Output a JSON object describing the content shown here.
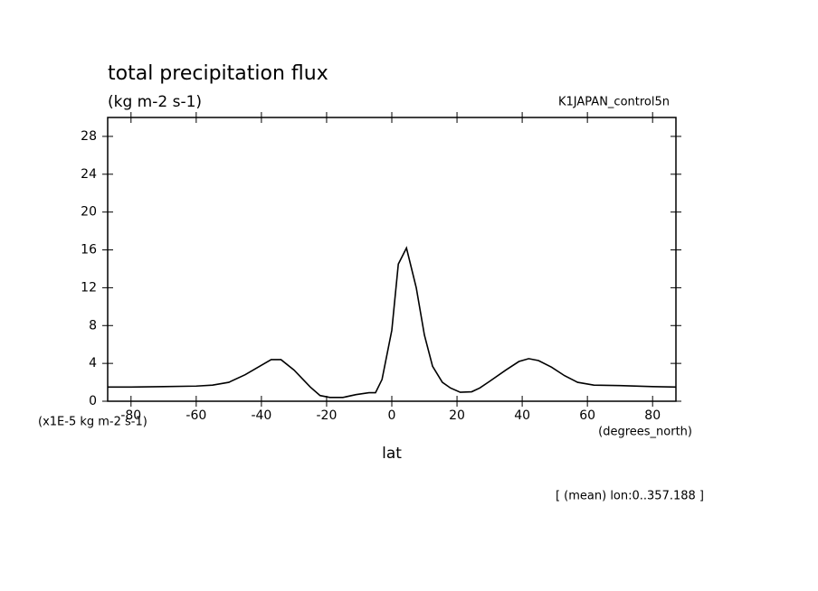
{
  "chart_data": {
    "type": "line",
    "title": "total precipitation flux",
    "subtitle": "(kg m-2 s-1)",
    "dataset_label": "K1JAPAN_control5n",
    "y_unit_label": "(x1E-5 kg m-2 s-1)",
    "x_unit_label": "(degrees_north)",
    "x_label": "lat",
    "annotation": "[ (mean) lon:0..357.188 ]",
    "x": [
      -87.16,
      -80,
      -70,
      -60,
      -55,
      -50,
      -45,
      -40,
      -37,
      -34,
      -30,
      -25,
      -22,
      -19,
      -15,
      -11,
      -7,
      -5,
      -3,
      0,
      2,
      4.5,
      7.5,
      10,
      12.5,
      15.5,
      18,
      21,
      24.5,
      27,
      30,
      35,
      39,
      42,
      45,
      49,
      53,
      57,
      62,
      70,
      80,
      87.16
    ],
    "series": [
      {
        "color": "#000000",
        "values": [
          1.5,
          1.5,
          1.55,
          1.6,
          1.7,
          2.0,
          2.8,
          3.8,
          4.4,
          4.4,
          3.3,
          1.5,
          0.6,
          0.4,
          0.4,
          0.7,
          0.9,
          0.9,
          2.3,
          7.5,
          14.5,
          16.2,
          12,
          7,
          3.7,
          2.0,
          1.4,
          0.95,
          1.0,
          1.4,
          2.1,
          3.3,
          4.2,
          4.5,
          4.3,
          3.6,
          2.7,
          2.0,
          1.7,
          1.65,
          1.55,
          1.5
        ]
      }
    ],
    "xlim": [
      -87.16,
      87.16
    ],
    "ylim": [
      0,
      30
    ],
    "xticks": [
      -80,
      -60,
      -40,
      -20,
      0,
      20,
      40,
      60,
      80
    ],
    "yticks": [
      0,
      4,
      8,
      12,
      16,
      20,
      24,
      28
    ]
  }
}
